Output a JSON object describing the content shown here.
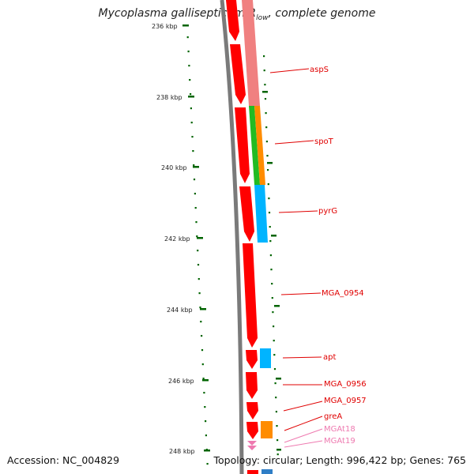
{
  "title": {
    "organism": "Mycoplasma gallisepticum R",
    "strain_sub": "low",
    "rest": ", complete genome"
  },
  "footer": {
    "accession": "Accession: NC_004829",
    "topology": "Topology: circular; Length: 996,422 bp; Genes: 765"
  },
  "colors": {
    "backbone": "#7a7a7a",
    "cds": "#ff0000",
    "highlight_pink": "#f08080",
    "green": "#22bb22",
    "orange": "#ff8c00",
    "cyan": "#00b4ff",
    "rna": "#ee7ab0",
    "tick": "#006400"
  },
  "scale_ticks": [
    {
      "label": "236 kbp"
    },
    {
      "label": "238 kbp"
    },
    {
      "label": "240 kbp"
    },
    {
      "label": "242 kbp"
    },
    {
      "label": "244 kbp"
    },
    {
      "label": "246 kbp"
    },
    {
      "label": "248 kbp"
    }
  ],
  "gene_labels": [
    {
      "name": "aspS",
      "type": "cds"
    },
    {
      "name": "spoT",
      "type": "cds"
    },
    {
      "name": "pyrG",
      "type": "cds"
    },
    {
      "name": "MGA_0954",
      "type": "cds"
    },
    {
      "name": "apt",
      "type": "cds"
    },
    {
      "name": "MGA_0956",
      "type": "cds"
    },
    {
      "name": "MGA_0957",
      "type": "cds"
    },
    {
      "name": "greA",
      "type": "cds"
    },
    {
      "name": "MGAt18",
      "type": "rna"
    },
    {
      "name": "MGAt19",
      "type": "rna"
    }
  ]
}
